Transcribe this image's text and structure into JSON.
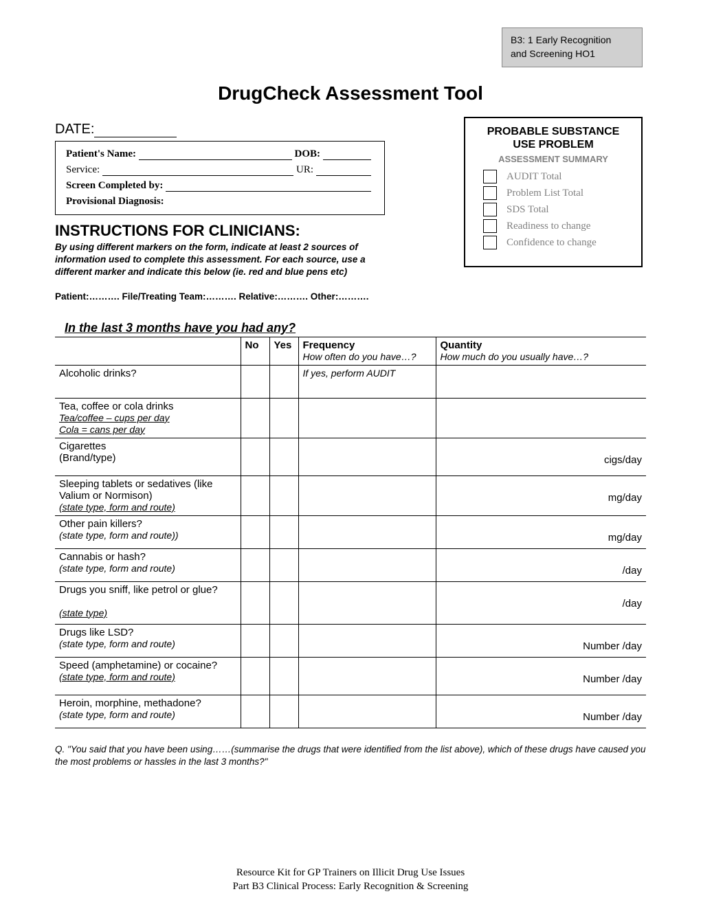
{
  "header_box": {
    "line1": "B3: 1 Early Recognition",
    "line2": "and Screening HO1"
  },
  "title": "DrugCheck Assessment Tool",
  "date_label": "DATE:",
  "patient_box": {
    "name_label": "Patient's Name:",
    "dob_label": "DOB:",
    "service_label": "Service:",
    "ur_label": "UR:",
    "screen_label": "Screen Completed by:",
    "diagnosis_label": "Provisional Diagnosis:"
  },
  "summary_box": {
    "title_l1": "PROBABLE SUBSTANCE",
    "title_l2": "USE PROBLEM",
    "subtitle": "ASSESSMENT SUMMARY",
    "items": [
      "AUDIT Total",
      "Problem List Total",
      "SDS Total",
      "Readiness to change",
      "Confidence to change"
    ]
  },
  "instructions": {
    "heading": "INSTRUCTIONS FOR CLINICIANS:",
    "body": "By using different markers on the form, indicate at least 2 sources of information used to complete this assessment.  For each source, use a different marker and indicate this below (ie. red and blue pens etc)",
    "sources": "Patient:……….  File/Treating Team:……….  Relative:……….  Other:………."
  },
  "table": {
    "intro": "In the last 3 months have you had any?",
    "headers": {
      "no": "No",
      "yes": "Yes",
      "freq": "Frequency",
      "freq_sub": "How often do you have…?",
      "qty": "Quantity",
      "qty_sub": "How much do you usually have…?"
    },
    "rows": [
      {
        "main": "Alcoholic drinks?",
        "sub": "",
        "freq_note": "If yes, perform AUDIT",
        "qty_unit": "",
        "h": "row-h"
      },
      {
        "main": "Tea, coffee or cola drinks",
        "sub": "Tea/coffee – cups per day\nCola = cans per day",
        "sub_u": true,
        "freq_note": "",
        "qty_unit": "",
        "h": "row-h"
      },
      {
        "main": "Cigarettes",
        "sub2": "(Brand/type)",
        "freq_note": "",
        "qty_unit": "cigs/day",
        "h": "row-h2"
      },
      {
        "main": "Sleeping tablets or sedatives (like Valium or Normison)",
        "sub": "(state type, form and route)",
        "sub_u": true,
        "freq_note": "",
        "qty_unit": "mg/day",
        "h": "row-h2"
      },
      {
        "main": "Other pain killers?",
        "sub": "(state type, form and route))",
        "freq_note": "",
        "qty_unit": "mg/day",
        "h": "row-h"
      },
      {
        "main": "Cannabis or hash?",
        "sub": "(state type, form and route)",
        "freq_note": "",
        "qty_unit": "/day",
        "h": "row-h"
      },
      {
        "main": "Drugs you sniff, like petrol or glue?",
        "sub": "(state type)",
        "sub_u": true,
        "sub_gap": true,
        "freq_note": "",
        "qty_unit": "/day",
        "h": "row-h3"
      },
      {
        "main": "Drugs like LSD?",
        "sub": "(state type, form and route)",
        "freq_note": "",
        "qty_unit": "Number /day",
        "h": "row-h"
      },
      {
        "main": "Speed (amphetamine) or cocaine?",
        "sub": "(state type, form and route)",
        "sub_u": true,
        "freq_note": "",
        "qty_unit": "Number /day",
        "h": "row-h2"
      },
      {
        "main": "Heroin, morphine, methadone?",
        "sub": "(state type, form and route)",
        "freq_note": "",
        "qty_unit": "Number /day",
        "h": "row-h"
      }
    ]
  },
  "footnote": "Q. \"You said that you have been using……(summarise the drugs that were identified from the list above), which of these drugs have caused you the most problems or hassles in the last 3 months?\"",
  "footer": {
    "l1": "Resource Kit for GP Trainers on Illicit Drug Use Issues",
    "l2": "Part B3 Clinical Process: Early Recognition & Screening"
  }
}
